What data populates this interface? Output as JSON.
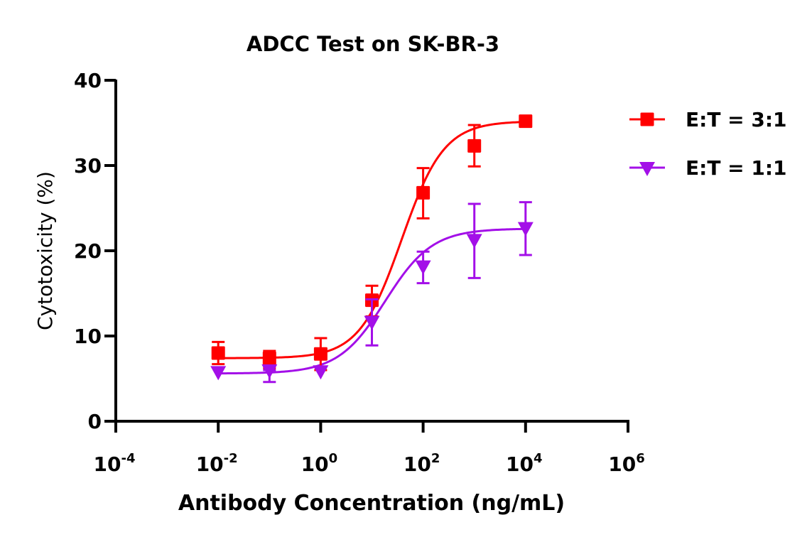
{
  "chart_data": {
    "type": "line",
    "title": "ADCC Test on SK-BR-3",
    "xlabel": "Antibody Concentration (ng/mL)",
    "ylabel": "Cytotoxicity (%)",
    "xscale": "log10",
    "xlim_log10": [
      -4,
      6
    ],
    "x_ticks": [
      {
        "base": "10",
        "exp": "-4",
        "log10": -4
      },
      {
        "base": "10",
        "exp": "-2",
        "log10": -2
      },
      {
        "base": "10",
        "exp": "0",
        "log10": 0
      },
      {
        "base": "10",
        "exp": "2",
        "log10": 2
      },
      {
        "base": "10",
        "exp": "4",
        "log10": 4
      },
      {
        "base": "10",
        "exp": "6",
        "log10": 6
      }
    ],
    "ylim": [
      0,
      40
    ],
    "y_ticks": [
      "0",
      "10",
      "20",
      "30",
      "40"
    ],
    "grid": false,
    "legend_position": "right-top",
    "x": [
      0.01,
      0.1,
      1,
      10,
      100,
      1000,
      10000
    ],
    "series": [
      {
        "name": "E:T = 3:1",
        "color": "#ff0000",
        "marker": "square",
        "values": [
          8.0,
          7.4,
          7.9,
          14.2,
          26.8,
          32.3,
          35.2
        ],
        "err_upper": [
          9.3,
          8.25,
          9.75,
          15.9,
          29.7,
          34.75,
          35.2
        ],
        "err_lower": [
          6.7,
          6.25,
          6.0,
          12.3,
          23.8,
          29.9,
          35.2
        ],
        "fit": {
          "model": "4PL",
          "bottom": 7.4,
          "top": 35.2,
          "log_ec50": 1.58,
          "hill": 1.05
        }
      },
      {
        "name": "E:T = 1:1",
        "color": "#a30fe8",
        "marker": "triangle-down",
        "values": [
          5.8,
          6.0,
          5.9,
          11.7,
          18.2,
          21.3,
          22.7
        ],
        "err_upper": [
          5.8,
          6.0,
          5.9,
          14.3,
          19.9,
          25.5,
          25.7
        ],
        "err_lower": [
          5.8,
          4.6,
          5.9,
          8.9,
          16.2,
          16.8,
          19.5
        ],
        "fit": {
          "model": "4PL",
          "bottom": 5.6,
          "top": 22.6,
          "log_ec50": 1.26,
          "hill": 0.95
        }
      }
    ]
  }
}
